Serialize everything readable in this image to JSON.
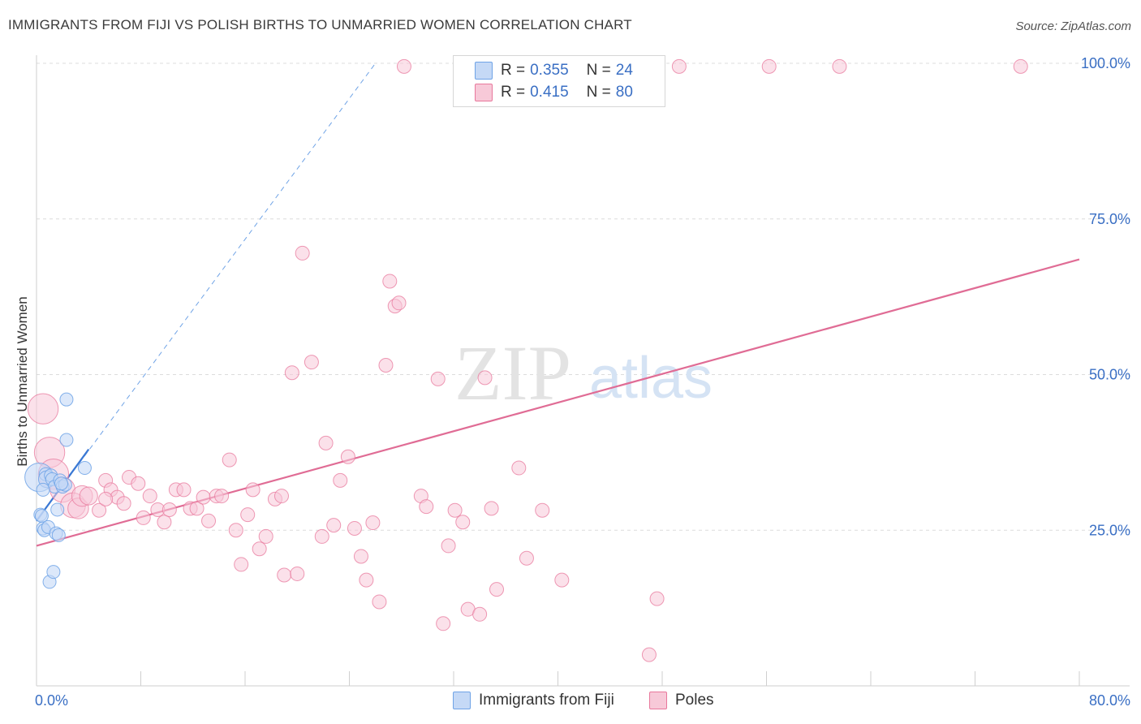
{
  "title": "IMMIGRANTS FROM FIJI VS POLISH BIRTHS TO UNMARRIED WOMEN CORRELATION CHART",
  "source": "Source: ZipAtlas.com",
  "watermark": {
    "zip": "ZIP",
    "atlas": "atlas"
  },
  "colors": {
    "fiji": "#6fa3e6",
    "fiji_fill": "#c5d9f6",
    "poles": "#e8789c",
    "poles_fill": "#f7c9d8",
    "axis_text": "#3a6fc4"
  },
  "legend": {
    "fiji": {
      "r_label": "R = ",
      "r_value": "0.355",
      "n_label": "N = ",
      "n_value": "24"
    },
    "poles": {
      "r_label": "R = ",
      "r_value": "0.415",
      "n_label": "N = ",
      "n_value": "80"
    }
  },
  "bottom_legend": {
    "fiji": "Immigrants from Fiji",
    "poles": "Poles"
  },
  "chart_data": {
    "type": "scatter",
    "title": "IMMIGRANTS FROM FIJI VS POLISH BIRTHS TO UNMARRIED WOMEN CORRELATION CHART",
    "xlabel": "",
    "ylabel": "Births to Unmarried Women",
    "xlim": [
      0,
      80
    ],
    "ylim": [
      0,
      100
    ],
    "x_tick_labels": [
      "0.0%",
      "80.0%"
    ],
    "y_tick_labels": [
      "25.0%",
      "50.0%",
      "75.0%",
      "100.0%"
    ],
    "y_ticks": [
      25,
      50,
      75,
      100
    ],
    "grid": true,
    "series": [
      {
        "name": "Immigrants from Fiji",
        "points": [
          [
            0.2,
            33.5,
            2.2
          ],
          [
            0.3,
            27.5,
            1
          ],
          [
            0.4,
            27.3,
            1
          ],
          [
            0.5,
            25.3,
            1
          ],
          [
            0.6,
            25.0,
            1
          ],
          [
            0.7,
            34.0,
            1
          ],
          [
            0.8,
            33.2,
            1.3
          ],
          [
            0.9,
            25.5,
            1
          ],
          [
            1.0,
            16.7,
            1
          ],
          [
            1.1,
            33.8,
            1
          ],
          [
            1.2,
            33.2,
            1
          ],
          [
            1.3,
            18.3,
            1
          ],
          [
            1.4,
            32.0,
            1
          ],
          [
            1.5,
            24.5,
            1
          ],
          [
            1.6,
            28.3,
            1
          ],
          [
            1.7,
            24.2,
            1
          ],
          [
            1.8,
            33.0,
            1
          ],
          [
            2.0,
            32.0,
            1
          ],
          [
            2.2,
            32.3,
            1
          ],
          [
            2.3,
            39.5,
            1
          ],
          [
            2.3,
            46.0,
            1
          ],
          [
            3.7,
            35.0,
            1
          ],
          [
            0.5,
            31.5,
            1
          ],
          [
            1.9,
            32.5,
            1
          ]
        ],
        "trend": {
          "x": [
            0,
            4
          ],
          "y": [
            26.5,
            38
          ]
        },
        "trend_extended": {
          "x": [
            0,
            26
          ],
          "y": [
            26.5,
            100
          ]
        }
      },
      {
        "name": "Poles",
        "points": [
          [
            0.5,
            44.5,
            2.2
          ],
          [
            1.0,
            37.5,
            2.2
          ],
          [
            1.3,
            34.0,
            2.2
          ],
          [
            2.0,
            31.5,
            1.8
          ],
          [
            2.8,
            29.0,
            1.8
          ],
          [
            3.2,
            28.5,
            1.5
          ],
          [
            3.5,
            30.5,
            1.5
          ],
          [
            4.0,
            30.5,
            1.3
          ],
          [
            4.8,
            28.2,
            1
          ],
          [
            5.3,
            33.0,
            1
          ],
          [
            5.7,
            31.5,
            1
          ],
          [
            6.2,
            30.3,
            1
          ],
          [
            6.7,
            29.3,
            1
          ],
          [
            7.1,
            33.5,
            1
          ],
          [
            7.8,
            32.5,
            1
          ],
          [
            8.2,
            27.0,
            1
          ],
          [
            8.7,
            30.5,
            1
          ],
          [
            9.3,
            28.3,
            1
          ],
          [
            9.8,
            26.3,
            1
          ],
          [
            10.2,
            28.3,
            1
          ],
          [
            10.7,
            31.5,
            1
          ],
          [
            11.3,
            31.5,
            1
          ],
          [
            11.8,
            28.5,
            1
          ],
          [
            12.3,
            28.5,
            1
          ],
          [
            12.8,
            30.3,
            1
          ],
          [
            13.2,
            26.5,
            1
          ],
          [
            13.8,
            30.5,
            1
          ],
          [
            14.2,
            30.5,
            1
          ],
          [
            14.8,
            36.3,
            1
          ],
          [
            15.3,
            25.0,
            1
          ],
          [
            15.7,
            19.5,
            1
          ],
          [
            16.2,
            27.5,
            1
          ],
          [
            16.6,
            31.5,
            1
          ],
          [
            17.1,
            22.0,
            1
          ],
          [
            17.6,
            24.0,
            1
          ],
          [
            18.3,
            30.0,
            1
          ],
          [
            18.8,
            30.5,
            1
          ],
          [
            19.0,
            17.8,
            1
          ],
          [
            19.6,
            50.3,
            1
          ],
          [
            20.0,
            18.0,
            1
          ],
          [
            20.4,
            69.5,
            1
          ],
          [
            21.1,
            52.0,
            1
          ],
          [
            21.9,
            24.0,
            1
          ],
          [
            22.2,
            39.0,
            1
          ],
          [
            22.8,
            25.8,
            1
          ],
          [
            23.3,
            33.0,
            1
          ],
          [
            23.9,
            36.8,
            1
          ],
          [
            24.4,
            25.3,
            1
          ],
          [
            24.9,
            20.8,
            1
          ],
          [
            25.3,
            17.0,
            1
          ],
          [
            25.8,
            26.2,
            1
          ],
          [
            26.3,
            13.5,
            1
          ],
          [
            26.8,
            51.5,
            1
          ],
          [
            27.1,
            65.0,
            1
          ],
          [
            27.5,
            61.0,
            1
          ],
          [
            27.8,
            61.5,
            1
          ],
          [
            29.5,
            30.5,
            1
          ],
          [
            29.9,
            28.8,
            1
          ],
          [
            30.8,
            49.3,
            1
          ],
          [
            31.2,
            10.0,
            1
          ],
          [
            31.6,
            22.5,
            1
          ],
          [
            32.1,
            28.2,
            1
          ],
          [
            32.7,
            26.3,
            1
          ],
          [
            33.1,
            12.3,
            1
          ],
          [
            34.0,
            11.5,
            1
          ],
          [
            34.4,
            49.5,
            1
          ],
          [
            34.9,
            28.5,
            1
          ],
          [
            35.3,
            15.5,
            1
          ],
          [
            37.0,
            35.0,
            1
          ],
          [
            37.6,
            20.5,
            1
          ],
          [
            38.8,
            28.2,
            1
          ],
          [
            40.3,
            17.0,
            1
          ],
          [
            47.0,
            5.0,
            1
          ],
          [
            47.6,
            14.0,
            1
          ],
          [
            28.2,
            99.5,
            1
          ],
          [
            49.3,
            99.5,
            1
          ],
          [
            56.2,
            99.5,
            1
          ],
          [
            61.6,
            99.5,
            1
          ],
          [
            75.5,
            99.5,
            1
          ],
          [
            5.3,
            30.0,
            1
          ]
        ],
        "trend": {
          "x": [
            0,
            80
          ],
          "y": [
            22.5,
            68.5
          ]
        }
      }
    ]
  }
}
